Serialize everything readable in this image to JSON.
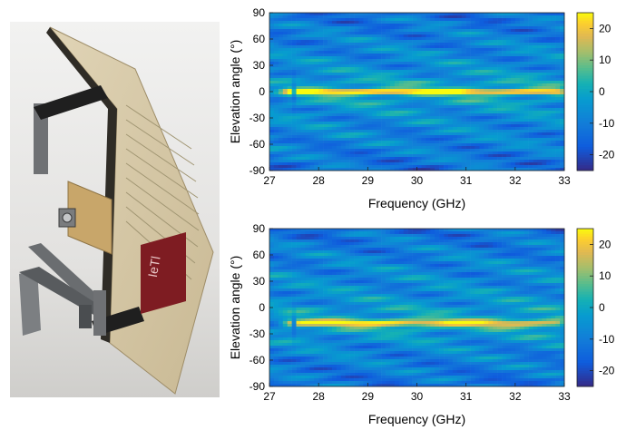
{
  "chart_data": [
    {
      "type": "heatmap",
      "xlabel": "Frequency (GHz)",
      "ylabel": "Elevation angle (°)",
      "xlim": [
        27,
        33
      ],
      "ylim": [
        -90,
        90
      ],
      "x_ticks": [
        "27",
        "28",
        "29",
        "30",
        "31",
        "32",
        "33"
      ],
      "y_ticks": [
        "90",
        "60",
        "30",
        "0",
        "-30",
        "-60",
        "-90"
      ],
      "colorbar": {
        "range": [
          -25,
          25
        ],
        "ticks": [
          "20",
          "10",
          "0",
          "-10",
          "-20"
        ],
        "colormap": "parula"
      },
      "main_lobe": {
        "elevation": 0,
        "freq_range": [
          27.5,
          32.8
        ],
        "peak_level": 21
      }
    },
    {
      "type": "heatmap",
      "xlabel": "Frequency (GHz)",
      "ylabel": "Elevation angle (°)",
      "xlim": [
        27,
        33
      ],
      "ylim": [
        -90,
        90
      ],
      "x_ticks": [
        "27",
        "28",
        "29",
        "30",
        "31",
        "32",
        "33"
      ],
      "y_ticks": [
        "90",
        "60",
        "30",
        "0",
        "-30",
        "-60",
        "-90"
      ],
      "colorbar": {
        "range": [
          -25,
          25
        ],
        "ticks": [
          "20",
          "10",
          "0",
          "-10",
          "-20"
        ],
        "colormap": "parula"
      },
      "main_lobe": {
        "elevation": -18,
        "freq_range": [
          27.5,
          32.8
        ],
        "peak_level": 21
      }
    }
  ]
}
